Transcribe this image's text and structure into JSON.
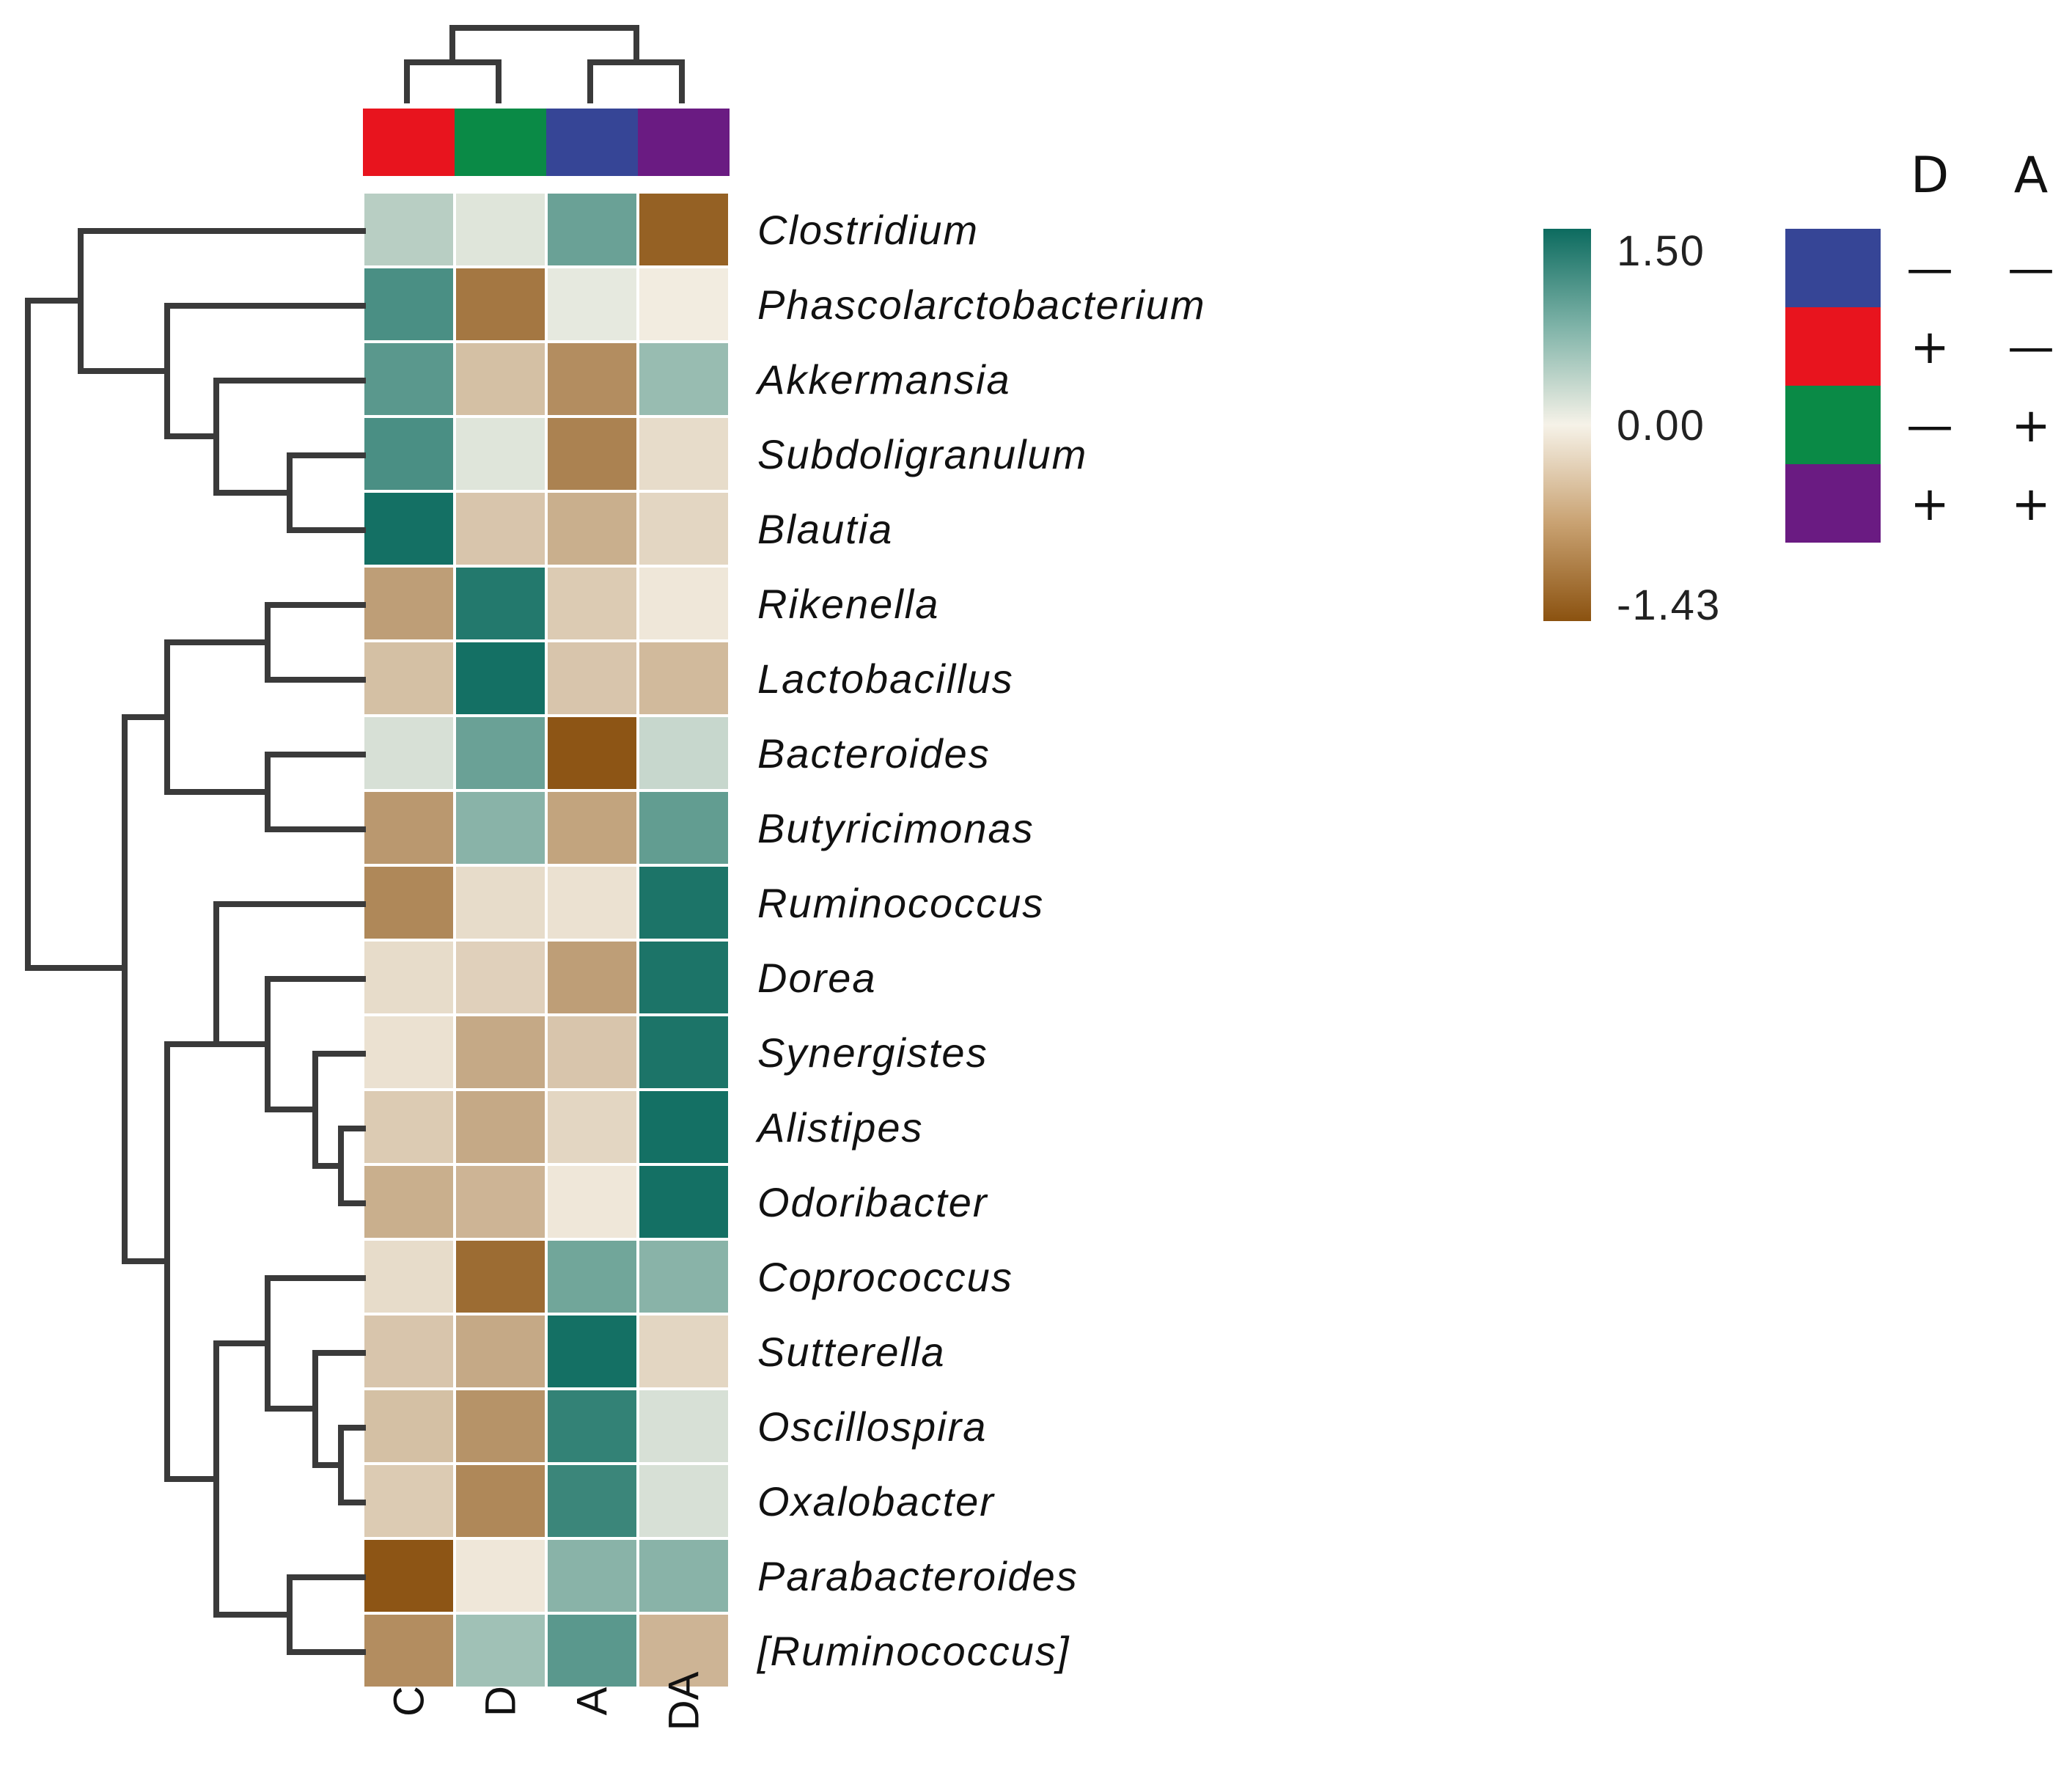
{
  "chart_data": {
    "type": "heatmap",
    "title": "",
    "xlabel": "",
    "ylabel": "",
    "columns": [
      "C",
      "D",
      "A",
      "DA"
    ],
    "rows": [
      "Clostridium",
      "Phascolarctobacterium",
      "Akkermansia",
      "Subdoligranulum",
      "Blautia",
      "Rikenella",
      "Lactobacillus",
      "Bacteroides",
      "Butyricimonas",
      "Ruminococcus",
      "Dorea",
      "Synergistes",
      "Alistipes",
      "Odoribacter",
      "Coprococcus",
      "Sutterella",
      "Oscillospira",
      "Oxalobacter",
      "Parabacteroides",
      "[Ruminococcus]"
    ],
    "values": [
      [
        0.4,
        0.15,
        0.9,
        -1.3
      ],
      [
        1.1,
        -1.1,
        0.1,
        -0.05
      ],
      [
        1.0,
        -0.45,
        -0.9,
        0.6
      ],
      [
        1.1,
        0.15,
        -1.0,
        -0.2
      ],
      [
        1.45,
        -0.4,
        -0.6,
        -0.25
      ],
      [
        -0.75,
        1.35,
        -0.35,
        -0.1
      ],
      [
        -0.45,
        1.45,
        -0.4,
        -0.5
      ],
      [
        0.2,
        0.9,
        -1.4,
        0.3
      ],
      [
        -0.8,
        0.7,
        -0.7,
        0.95
      ],
      [
        -0.95,
        -0.2,
        -0.15,
        1.4
      ],
      [
        -0.2,
        -0.3,
        -0.75,
        1.4
      ],
      [
        -0.15,
        -0.65,
        -0.4,
        1.4
      ],
      [
        -0.35,
        -0.65,
        -0.25,
        1.45
      ],
      [
        -0.6,
        -0.55,
        -0.1,
        1.45
      ],
      [
        -0.2,
        -1.2,
        0.85,
        0.7
      ],
      [
        -0.4,
        -0.65,
        1.45,
        -0.25
      ],
      [
        -0.45,
        -0.85,
        1.25,
        0.2
      ],
      [
        -0.35,
        -0.95,
        1.2,
        0.2
      ],
      [
        -1.4,
        -0.1,
        0.7,
        0.7
      ],
      [
        -0.9,
        0.55,
        1.0,
        -0.55
      ]
    ],
    "colorbar": {
      "min": -1.43,
      "max": 1.5,
      "mid": 0.0,
      "labels": [
        "1.50",
        "0.00",
        "-1.43"
      ],
      "colors": [
        "#0c6b5f",
        "#f6f2e8",
        "#8b5210"
      ]
    },
    "column_groups": {
      "C": "#e8141e",
      "D": "#0a8a46",
      "A": "#364596",
      "DA": "#6a1b82"
    },
    "legend": {
      "headers": [
        "D",
        "A"
      ],
      "items": [
        {
          "color": "#364596",
          "D": "—",
          "A": "—"
        },
        {
          "color": "#e8141e",
          "D": "+",
          "A": "—"
        },
        {
          "color": "#0a8a46",
          "D": "—",
          "A": "+"
        },
        {
          "color": "#6a1b82",
          "D": "+",
          "A": "+"
        }
      ]
    }
  }
}
